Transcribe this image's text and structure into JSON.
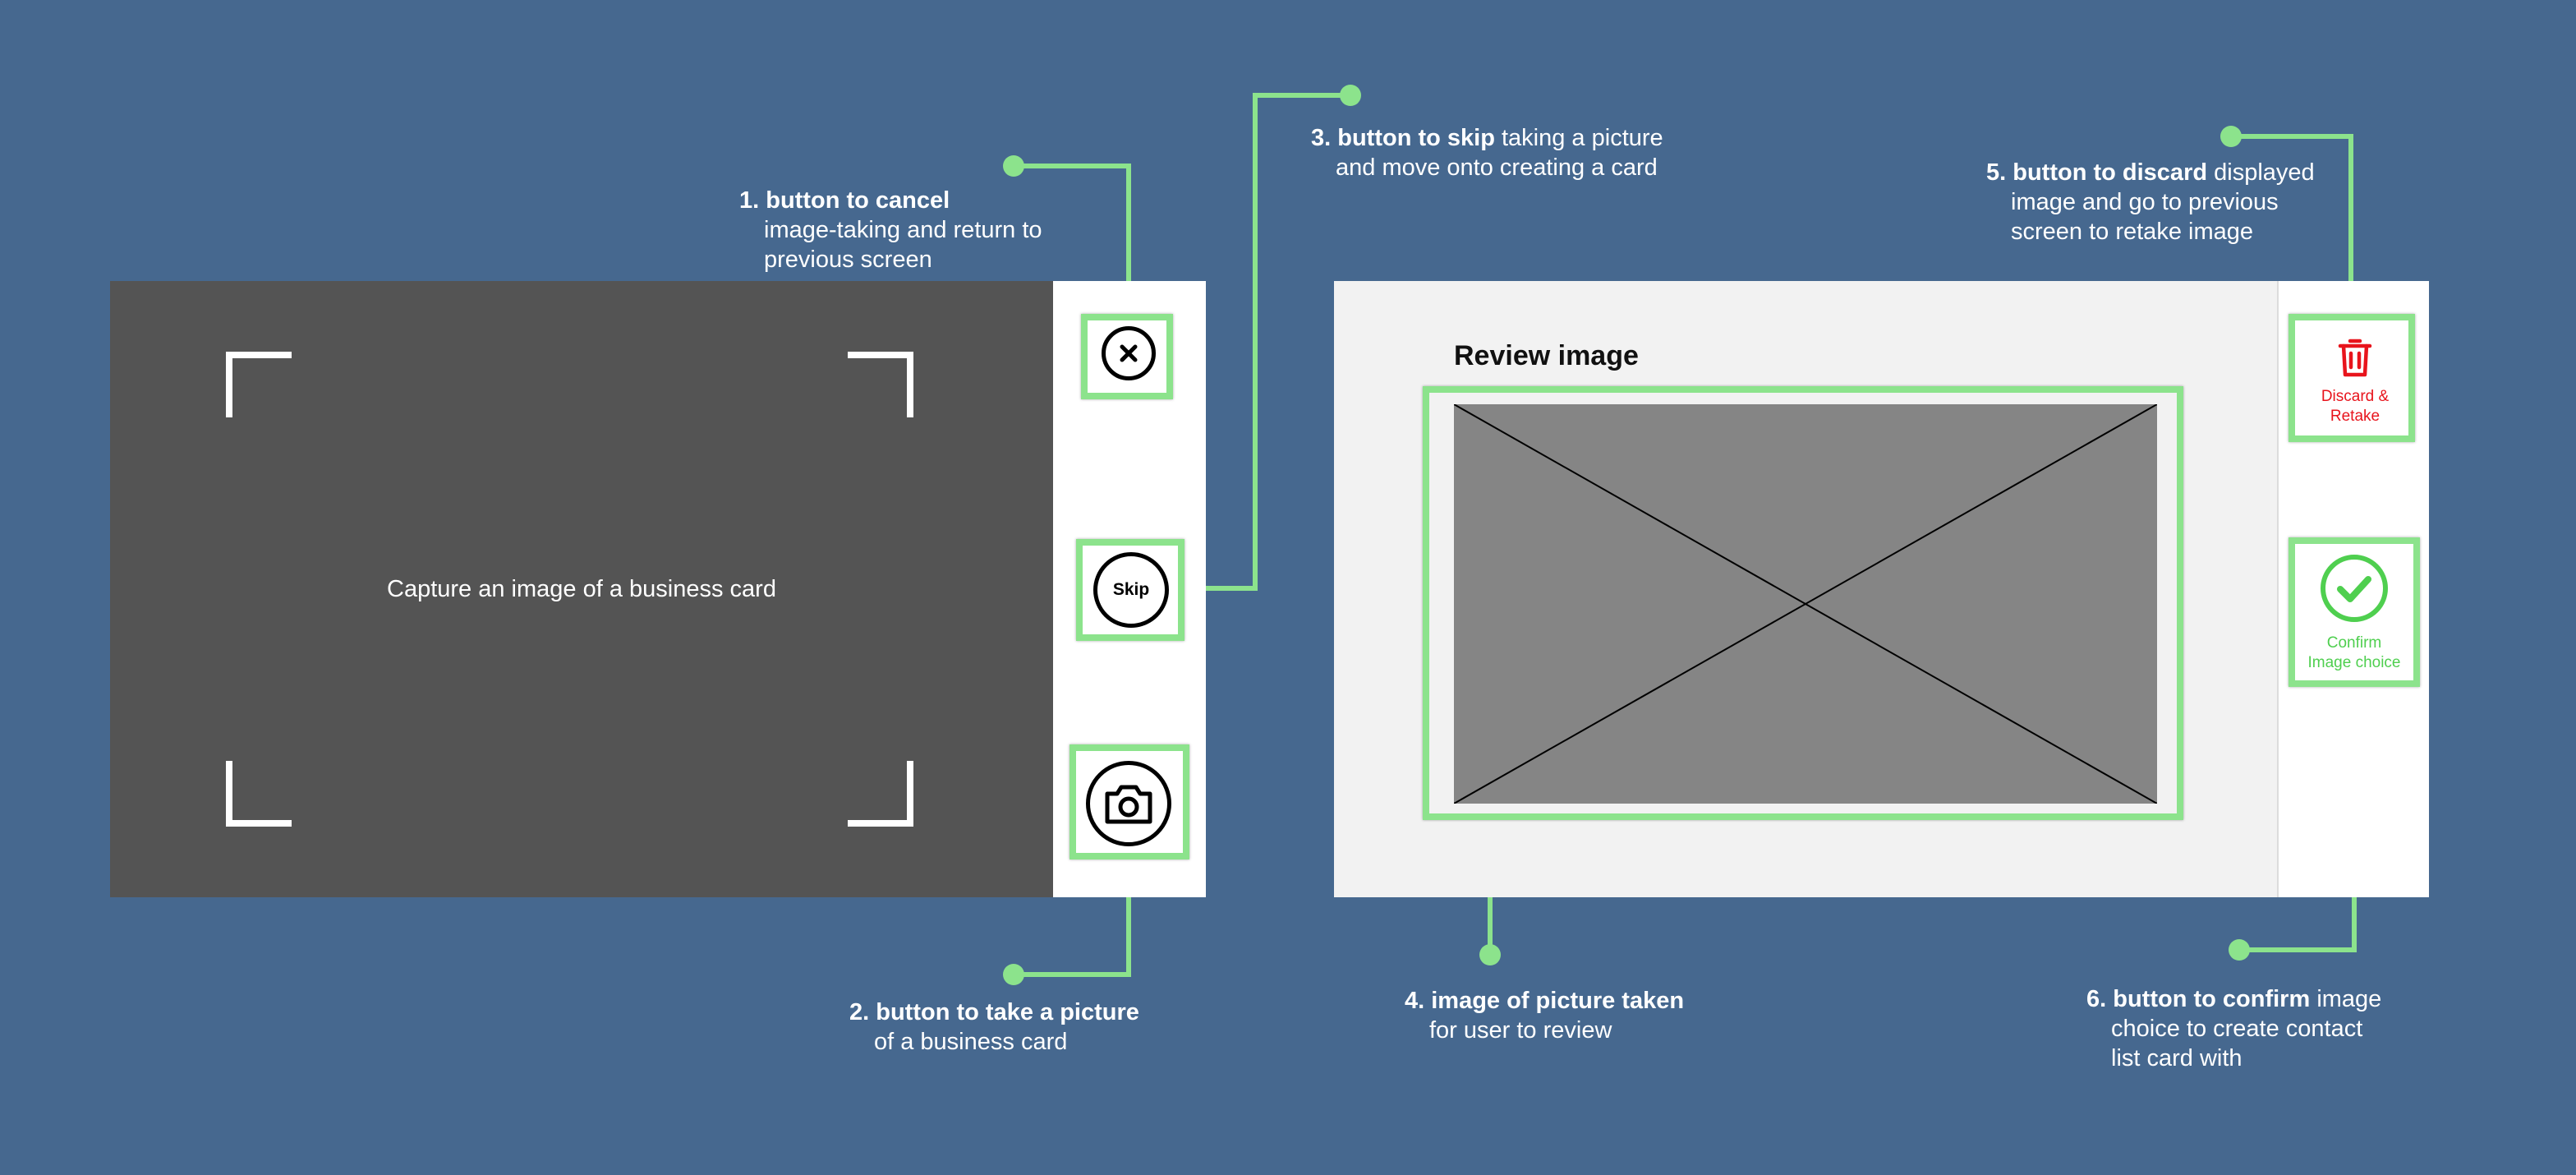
{
  "camera_screen": {
    "caption": "Capture an image of a business card",
    "buttons": {
      "cancel_icon": "close-circle-icon",
      "skip_label": "Skip",
      "capture_icon": "camera-icon"
    }
  },
  "review_screen": {
    "title": "Review image",
    "discard_label_line1": "Discard &",
    "discard_label_line2": "Retake",
    "confirm_label_line1": "Confirm",
    "confirm_label_line2": "Image choice",
    "discard_color": "#e8141c",
    "confirm_color": "#4fcf4f"
  },
  "annotations": [
    {
      "number": "1.",
      "bold": "button to cancel",
      "rest": "",
      "lines": [
        "image-taking and return to",
        "previous screen"
      ]
    },
    {
      "number": "2.",
      "bold": "button to take a picture",
      "rest": "",
      "lines": [
        "of a business card"
      ]
    },
    {
      "number": "3.",
      "bold": "button to skip",
      "rest": " taking a picture",
      "lines": [
        "and move onto creating a card"
      ]
    },
    {
      "number": "4.",
      "bold": "image of picture taken",
      "rest": "",
      "lines": [
        "for user to review"
      ]
    },
    {
      "number": "5.",
      "bold": "button to discard",
      "rest": " displayed",
      "lines": [
        "image and go to previous",
        "screen to retake image"
      ]
    },
    {
      "number": "6.",
      "bold": "button to confirm",
      "rest": " image",
      "lines": [
        "choice to create contact",
        "list card with"
      ]
    }
  ],
  "colors": {
    "background": "#46688f",
    "highlight": "#8ce38c",
    "viewfinder": "#545454"
  }
}
